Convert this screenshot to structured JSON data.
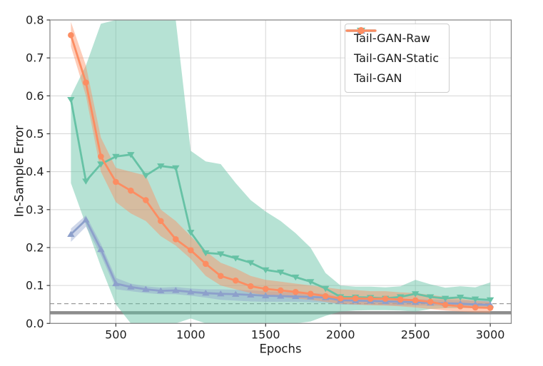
{
  "chart_data": {
    "type": "line",
    "title": "",
    "xlabel": "Epochs",
    "ylabel": "In-Sample Error",
    "xlim": [
      60,
      3140
    ],
    "ylim": [
      0.0,
      0.8
    ],
    "xticks": [
      500,
      1000,
      1500,
      2000,
      2500,
      3000
    ],
    "yticks": [
      0.0,
      0.1,
      0.2,
      0.3,
      0.4,
      0.5,
      0.6,
      0.7,
      0.8
    ],
    "grid": true,
    "grid_color": "#d6d6d6",
    "spine_color": "#8a8a8a",
    "tick_label_color": "#1f1f1f",
    "legend_position": "upper-right",
    "x": [
      200,
      300,
      400,
      500,
      600,
      700,
      800,
      900,
      1000,
      1100,
      1200,
      1300,
      1400,
      1500,
      1600,
      1700,
      1800,
      1900,
      2000,
      2100,
      2200,
      2300,
      2400,
      2500,
      2600,
      2700,
      2800,
      2900,
      3000
    ],
    "series": [
      {
        "name": "Tail-GAN-Raw",
        "color": "#66c2a5",
        "marker": "triangle-down",
        "band_opacity": 0.48,
        "values": [
          0.59,
          0.375,
          0.42,
          0.44,
          0.445,
          0.39,
          0.415,
          0.41,
          0.24,
          0.186,
          0.183,
          0.172,
          0.16,
          0.141,
          0.135,
          0.122,
          0.11,
          0.092,
          0.07,
          0.069,
          0.068,
          0.066,
          0.07,
          0.078,
          0.07,
          0.066,
          0.069,
          0.064,
          0.062
        ],
        "band_upper": [
          0.6,
          0.68,
          0.79,
          0.8,
          0.8,
          0.8,
          0.8,
          0.8,
          0.455,
          0.427,
          0.42,
          0.37,
          0.325,
          0.295,
          0.27,
          0.238,
          0.2,
          0.133,
          0.1,
          0.097,
          0.097,
          0.095,
          0.098,
          0.115,
          0.103,
          0.094,
          0.098,
          0.095,
          0.108
        ],
        "band_lower": [
          0.37,
          0.26,
          0.15,
          0.05,
          0.0,
          0.0,
          0.0,
          0.0,
          0.013,
          0.0,
          0.0,
          0.0,
          0.0,
          0.0,
          0.0,
          0.0,
          0.005,
          0.02,
          0.031,
          0.034,
          0.035,
          0.035,
          0.034,
          0.031,
          0.038,
          0.04,
          0.04,
          0.041,
          0.042
        ]
      },
      {
        "name": "Tail-GAN-Static",
        "color": "#8da0cb",
        "marker": "triangle-up",
        "band_opacity": 0.42,
        "values": [
          0.235,
          0.273,
          0.195,
          0.105,
          0.096,
          0.09,
          0.086,
          0.087,
          0.083,
          0.08,
          0.078,
          0.077,
          0.075,
          0.073,
          0.072,
          0.071,
          0.07,
          0.068,
          0.061,
          0.06,
          0.059,
          0.058,
          0.057,
          0.056,
          0.054,
          0.053,
          0.052,
          0.05,
          0.049
        ],
        "band_upper": [
          0.25,
          0.285,
          0.21,
          0.12,
          0.105,
          0.098,
          0.094,
          0.096,
          0.092,
          0.09,
          0.09,
          0.089,
          0.087,
          0.085,
          0.083,
          0.082,
          0.08,
          0.078,
          0.07,
          0.068,
          0.067,
          0.066,
          0.065,
          0.064,
          0.063,
          0.062,
          0.061,
          0.06,
          0.06
        ],
        "band_lower": [
          0.215,
          0.255,
          0.18,
          0.09,
          0.085,
          0.08,
          0.077,
          0.077,
          0.073,
          0.068,
          0.062,
          0.06,
          0.058,
          0.057,
          0.057,
          0.057,
          0.056,
          0.055,
          0.05,
          0.049,
          0.049,
          0.048,
          0.047,
          0.047,
          0.047,
          0.046,
          0.045,
          0.045,
          0.044
        ]
      },
      {
        "name": "Tail-GAN",
        "color": "#fc8d62",
        "marker": "circle",
        "band_opacity": 0.45,
        "values": [
          0.76,
          0.635,
          0.44,
          0.373,
          0.35,
          0.325,
          0.27,
          0.222,
          0.193,
          0.157,
          0.125,
          0.113,
          0.098,
          0.091,
          0.087,
          0.083,
          0.078,
          0.072,
          0.066,
          0.066,
          0.065,
          0.065,
          0.063,
          0.061,
          0.057,
          0.049,
          0.045,
          0.042,
          0.041
        ],
        "band_upper": [
          0.795,
          0.68,
          0.49,
          0.41,
          0.4,
          0.39,
          0.3,
          0.27,
          0.23,
          0.19,
          0.16,
          0.145,
          0.125,
          0.115,
          0.11,
          0.105,
          0.1,
          0.095,
          0.09,
          0.088,
          0.085,
          0.085,
          0.082,
          0.08,
          0.075,
          0.07,
          0.065,
          0.06,
          0.057
        ],
        "band_lower": [
          0.73,
          0.6,
          0.4,
          0.32,
          0.29,
          0.27,
          0.23,
          0.205,
          0.17,
          0.125,
          0.1,
          0.09,
          0.08,
          0.075,
          0.07,
          0.066,
          0.062,
          0.057,
          0.052,
          0.05,
          0.048,
          0.047,
          0.045,
          0.042,
          0.038,
          0.034,
          0.031,
          0.029,
          0.028
        ]
      }
    ],
    "reference_lines": [
      {
        "y": 0.052,
        "style": "dashed",
        "color": "#9a9a9a",
        "width": 1.3
      },
      {
        "y": 0.028,
        "style": "solid",
        "color": "#8c8c8c",
        "width": 4.5
      }
    ]
  }
}
